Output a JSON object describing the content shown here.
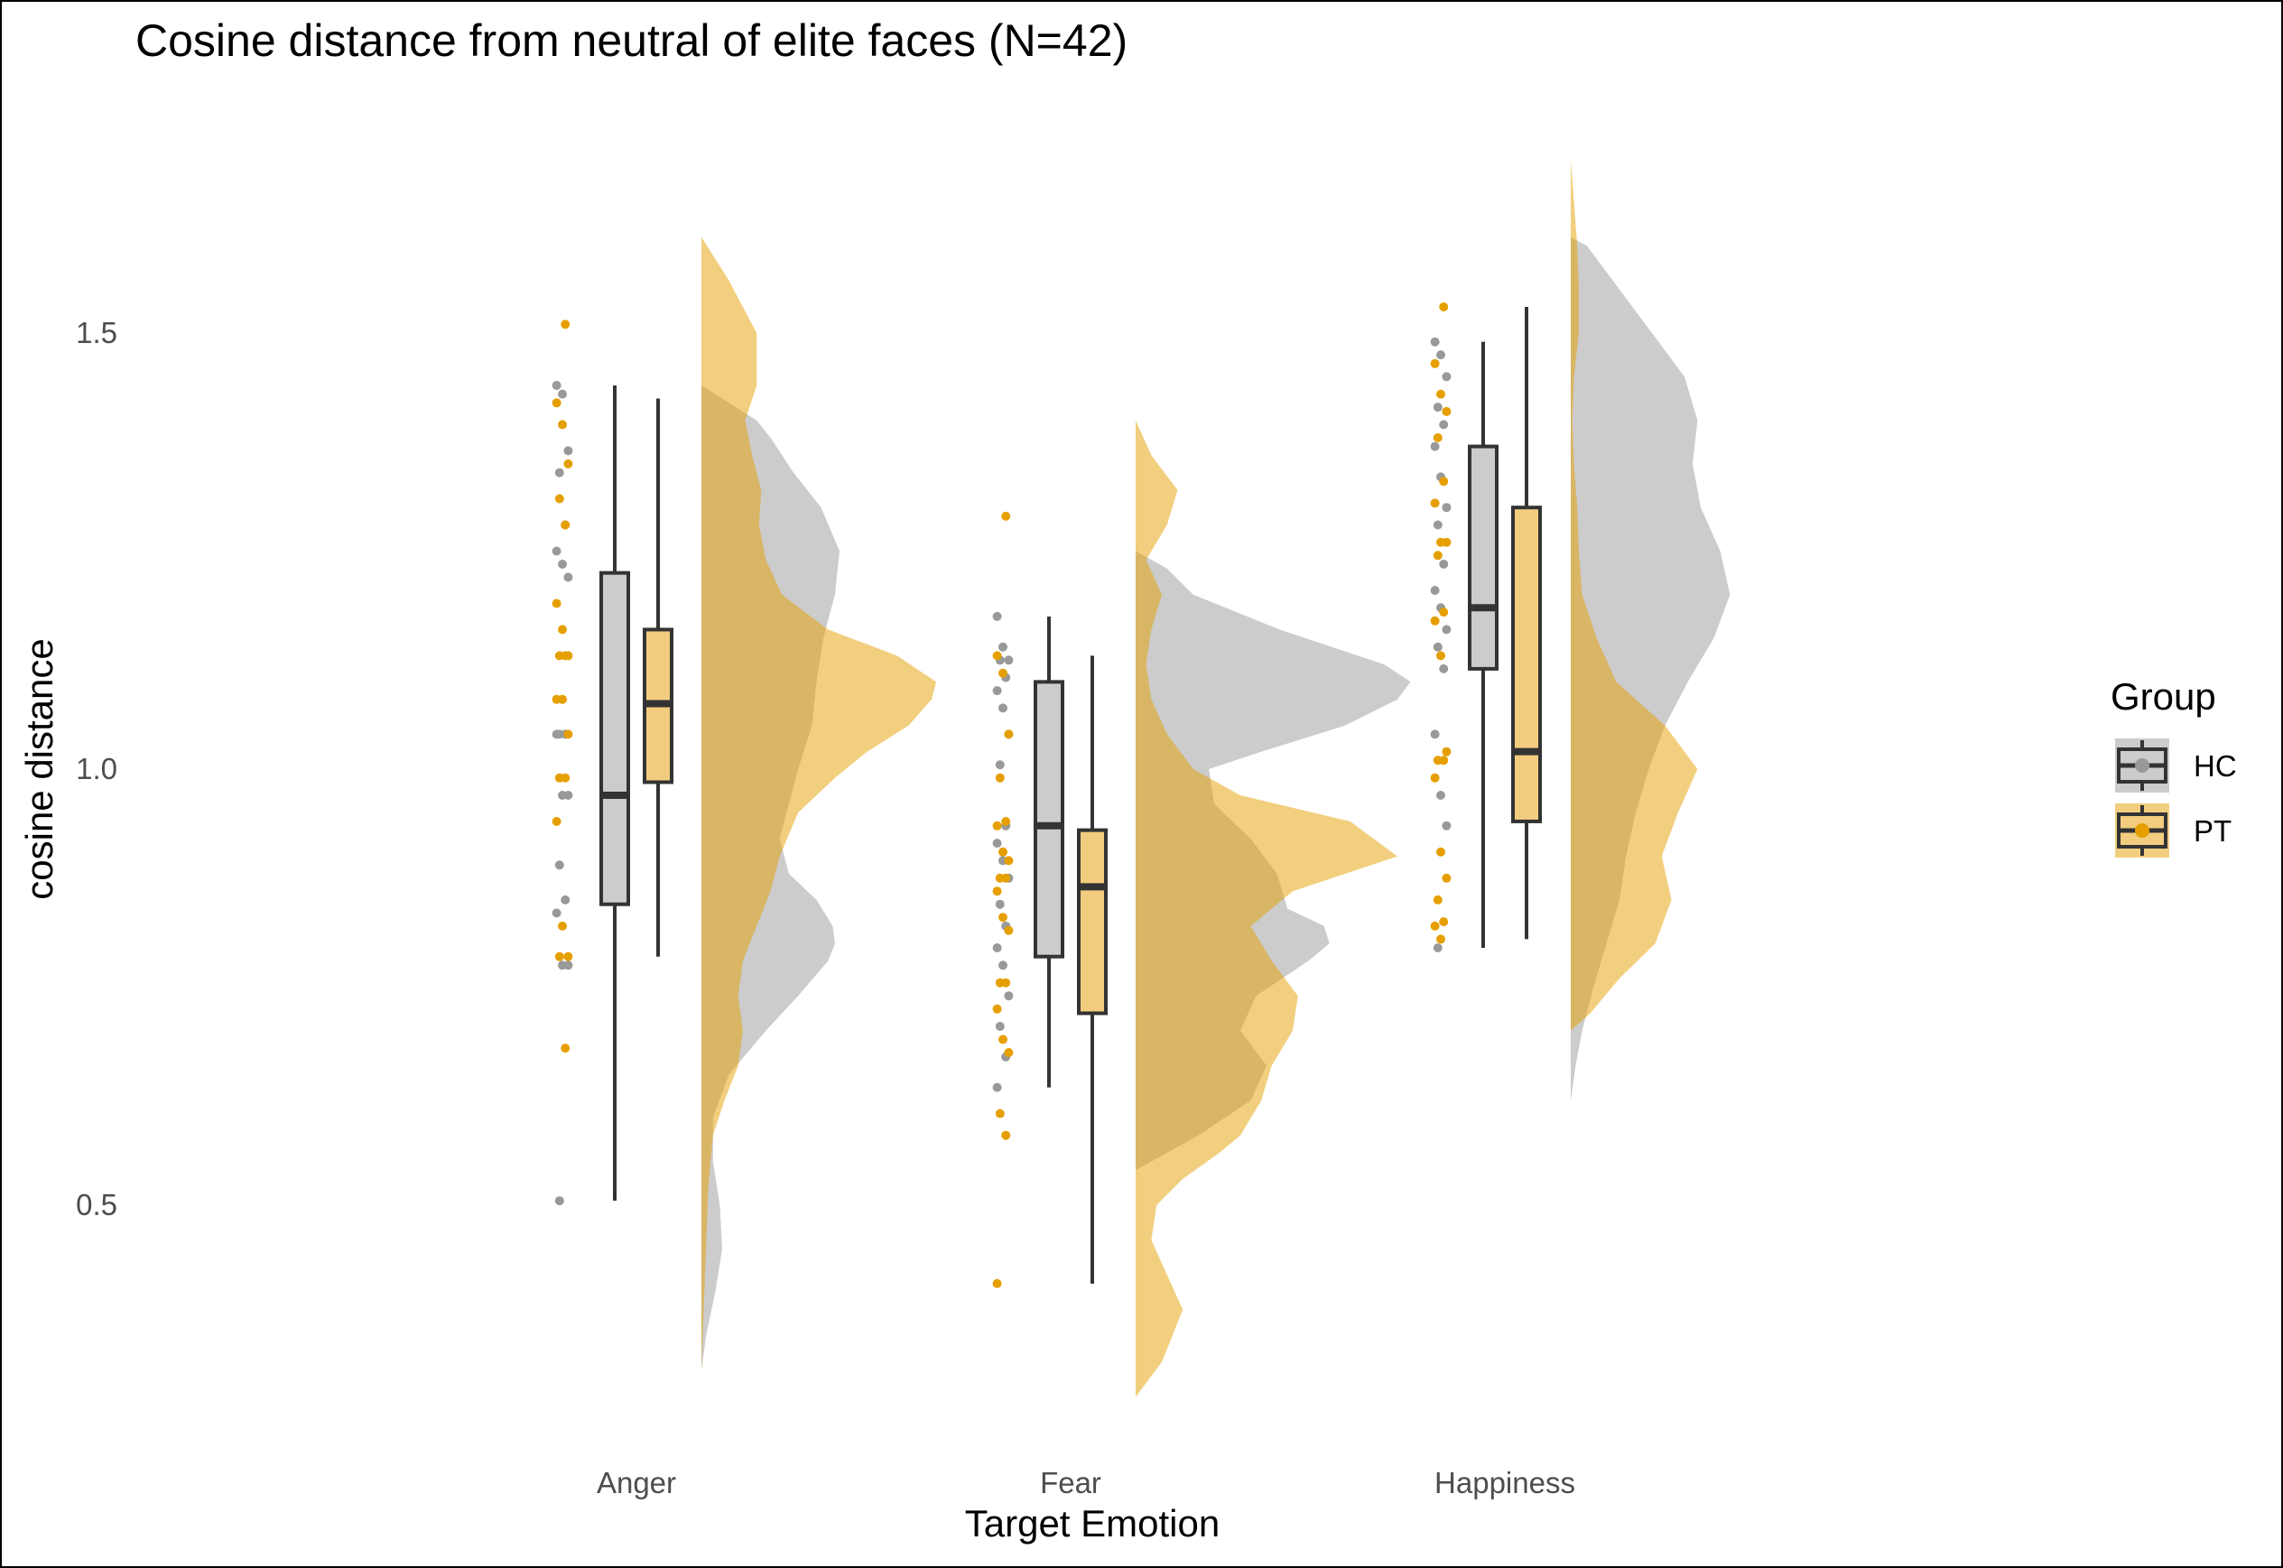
{
  "chart_data": {
    "type": "raincloud",
    "title": "Cosine distance from neutral of elite faces (N=42)",
    "xlabel": "Target Emotion",
    "ylabel": "cosine distance",
    "categories": [
      "Anger",
      "Fear",
      "Happiness"
    ],
    "y_ticks": [
      0.5,
      1.0,
      1.5
    ],
    "y_tick_labels": [
      "0.5",
      "1.0",
      "1.5"
    ],
    "ylim": [
      0.22,
      1.82
    ],
    "grid": false,
    "legend": {
      "title": "Group",
      "position": "right",
      "entries": [
        {
          "label": "HC",
          "color": "#999999"
        },
        {
          "label": "PT",
          "color": "#E69F00"
        }
      ]
    },
    "series": [
      {
        "name": "HC",
        "color": "#999999",
        "box_fill": "#cccccc",
        "boxes": [
          {
            "category": "Anger",
            "min": 0.505,
            "q1": 0.845,
            "median": 0.97,
            "q3": 1.225,
            "max": 1.44
          },
          {
            "category": "Fear",
            "min": 0.635,
            "q1": 0.785,
            "median": 0.935,
            "q3": 1.1,
            "max": 1.175
          },
          {
            "category": "Happiness",
            "min": 0.795,
            "q1": 1.115,
            "median": 1.185,
            "q3": 1.37,
            "max": 1.49
          }
        ],
        "points": [
          {
            "category": "Anger",
            "values": [
              1.44,
              1.43,
              1.365,
              1.34,
              1.28,
              1.25,
              1.235,
              1.22,
              1.04,
              1.04,
              1.04,
              0.97,
              0.97,
              0.89,
              0.85,
              0.835,
              0.775,
              0.775,
              0.505
            ]
          },
          {
            "category": "Fear",
            "values": [
              1.175,
              1.14,
              1.125,
              1.125,
              1.105,
              1.09,
              1.07,
              1.04,
              1.005,
              0.935,
              0.915,
              0.895,
              0.875,
              0.845,
              0.82,
              0.795,
              0.775,
              0.74,
              0.705,
              0.67,
              0.635
            ]
          },
          {
            "category": "Happiness",
            "values": [
              1.49,
              1.475,
              1.45,
              1.415,
              1.395,
              1.37,
              1.335,
              1.3,
              1.28,
              1.235,
              1.205,
              1.185,
              1.16,
              1.14,
              1.115,
              1.04,
              0.97,
              0.935,
              0.795
            ]
          }
        ],
        "density_x": [
          0.0,
          0.1,
          0.2,
          0.3,
          0.4,
          0.5,
          0.6,
          0.7,
          0.8,
          0.9,
          1.0
        ],
        "densities": [
          {
            "category": "Anger",
            "y": [
              0.31,
              0.35,
              0.4,
              0.45,
              0.5,
              0.55,
              0.6,
              0.65,
              0.7,
              0.74,
              0.78,
              0.8,
              0.82,
              0.85,
              0.88,
              0.92,
              0.96,
              1.0,
              1.05,
              1.1,
              1.15,
              1.2,
              1.25,
              1.3,
              1.34,
              1.38,
              1.4,
              1.44
            ],
            "d": [
              0.0,
              0.02,
              0.06,
              0.09,
              0.08,
              0.05,
              0.05,
              0.12,
              0.28,
              0.42,
              0.55,
              0.58,
              0.57,
              0.5,
              0.38,
              0.34,
              0.38,
              0.42,
              0.48,
              0.5,
              0.53,
              0.58,
              0.6,
              0.52,
              0.4,
              0.3,
              0.24,
              0.0
            ]
          },
          {
            "category": "Fear",
            "y": [
              0.54,
              0.58,
              0.62,
              0.66,
              0.7,
              0.74,
              0.78,
              0.8,
              0.82,
              0.84,
              0.88,
              0.92,
              0.96,
              1.0,
              1.02,
              1.05,
              1.08,
              1.1,
              1.12,
              1.16,
              1.2,
              1.23,
              1.25
            ],
            "d": [
              0.0,
              0.24,
              0.44,
              0.5,
              0.4,
              0.46,
              0.66,
              0.74,
              0.72,
              0.58,
              0.54,
              0.44,
              0.3,
              0.28,
              0.48,
              0.8,
              1.0,
              1.05,
              0.95,
              0.55,
              0.22,
              0.12,
              0.0
            ]
          },
          {
            "category": "Happiness",
            "y": [
              0.62,
              0.66,
              0.7,
              0.75,
              0.8,
              0.85,
              0.9,
              0.95,
              1.0,
              1.05,
              1.1,
              1.15,
              1.2,
              1.25,
              1.3,
              1.35,
              1.4,
              1.45,
              1.5,
              1.55,
              1.6,
              1.61
            ],
            "d": [
              0.0,
              0.03,
              0.07,
              0.14,
              0.22,
              0.3,
              0.34,
              0.4,
              0.48,
              0.58,
              0.72,
              0.88,
              0.98,
              0.92,
              0.8,
              0.75,
              0.78,
              0.7,
              0.5,
              0.3,
              0.1,
              0.0
            ]
          }
        ]
      },
      {
        "name": "PT",
        "color": "#E69F00",
        "box_fill": "#f3cd7f",
        "boxes": [
          {
            "category": "Anger",
            "min": 0.785,
            "q1": 0.985,
            "median": 1.075,
            "q3": 1.16,
            "max": 1.425
          },
          {
            "category": "Fear",
            "min": 0.41,
            "q1": 0.72,
            "median": 0.865,
            "q3": 0.93,
            "max": 1.13
          },
          {
            "category": "Happiness",
            "min": 0.805,
            "q1": 0.94,
            "median": 1.02,
            "q3": 1.3,
            "max": 1.53
          }
        ],
        "points": [
          {
            "category": "Anger",
            "values": [
              1.51,
              1.42,
              1.395,
              1.35,
              1.31,
              1.28,
              1.19,
              1.16,
              1.13,
              1.13,
              1.13,
              1.08,
              1.08,
              1.04,
              0.99,
              0.99,
              0.94,
              0.82,
              0.785,
              0.785,
              0.68
            ]
          },
          {
            "category": "Fear",
            "values": [
              1.29,
              1.13,
              1.11,
              1.04,
              0.99,
              0.94,
              0.935,
              0.905,
              0.895,
              0.875,
              0.875,
              0.86,
              0.83,
              0.815,
              0.755,
              0.755,
              0.725,
              0.69,
              0.675,
              0.605,
              0.58,
              0.41
            ]
          },
          {
            "category": "Happiness",
            "values": [
              1.53,
              1.465,
              1.43,
              1.41,
              1.38,
              1.33,
              1.305,
              1.26,
              1.26,
              1.245,
              1.18,
              1.17,
              1.13,
              1.02,
              1.01,
              1.01,
              0.99,
              0.905,
              0.875,
              0.85,
              0.825,
              0.82,
              0.805
            ]
          }
        ],
        "density_x": [
          0.0,
          0.1,
          0.2,
          0.3,
          0.4,
          0.5,
          0.6,
          0.7,
          0.8,
          0.9,
          1.0
        ],
        "densities": [
          {
            "category": "Anger",
            "y": [
              0.31,
              0.38,
              0.45,
              0.52,
              0.58,
              0.62,
              0.66,
              0.7,
              0.74,
              0.78,
              0.82,
              0.86,
              0.9,
              0.95,
              0.99,
              1.02,
              1.05,
              1.08,
              1.1,
              1.13,
              1.16,
              1.2,
              1.24,
              1.28,
              1.32,
              1.36,
              1.4,
              1.44,
              1.5,
              1.56,
              1.61
            ],
            "d": [
              0.0,
              0.01,
              0.02,
              0.03,
              0.05,
              0.1,
              0.16,
              0.18,
              0.16,
              0.18,
              0.24,
              0.3,
              0.34,
              0.42,
              0.58,
              0.72,
              0.9,
              1.0,
              1.02,
              0.85,
              0.55,
              0.35,
              0.28,
              0.25,
              0.26,
              0.22,
              0.19,
              0.24,
              0.24,
              0.12,
              0.0
            ]
          },
          {
            "category": "Fear",
            "y": [
              0.28,
              0.32,
              0.38,
              0.42,
              0.46,
              0.5,
              0.53,
              0.56,
              0.58,
              0.62,
              0.66,
              0.7,
              0.74,
              0.78,
              0.82,
              0.86,
              0.9,
              0.94,
              0.97,
              1.0,
              1.04,
              1.08,
              1.12,
              1.16,
              1.2,
              1.24,
              1.28,
              1.32,
              1.36,
              1.4
            ],
            "d": [
              0.0,
              0.1,
              0.18,
              0.12,
              0.06,
              0.08,
              0.18,
              0.32,
              0.4,
              0.48,
              0.52,
              0.6,
              0.62,
              0.52,
              0.44,
              0.6,
              1.0,
              0.82,
              0.4,
              0.22,
              0.12,
              0.06,
              0.04,
              0.06,
              0.1,
              0.04,
              0.12,
              0.16,
              0.06,
              0.0
            ]
          },
          {
            "category": "Happiness",
            "y": [
              0.7,
              0.72,
              0.76,
              0.8,
              0.85,
              0.9,
              0.95,
              1.0,
              1.05,
              1.1,
              1.15,
              1.2,
              1.25,
              1.3,
              1.35,
              1.4,
              1.45,
              1.5,
              1.55,
              1.6,
              1.65,
              1.7
            ],
            "d": [
              0.0,
              0.12,
              0.3,
              0.52,
              0.62,
              0.56,
              0.66,
              0.78,
              0.58,
              0.28,
              0.16,
              0.07,
              0.05,
              0.04,
              0.02,
              0.01,
              0.02,
              0.05,
              0.05,
              0.04,
              0.02,
              0.0
            ]
          }
        ]
      }
    ]
  }
}
